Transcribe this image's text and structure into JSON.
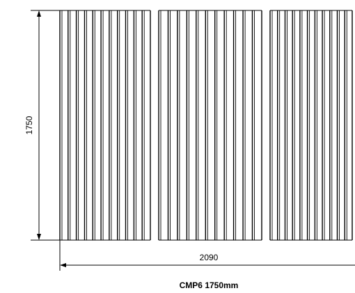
{
  "drawing": {
    "height_label": "1750",
    "width_label": "2090",
    "caption": "CMP6 1750mm",
    "line_color": "#000000",
    "panels": [
      {
        "strips": 11
      },
      {
        "strips": 11
      },
      {
        "strips": 11
      }
    ]
  }
}
